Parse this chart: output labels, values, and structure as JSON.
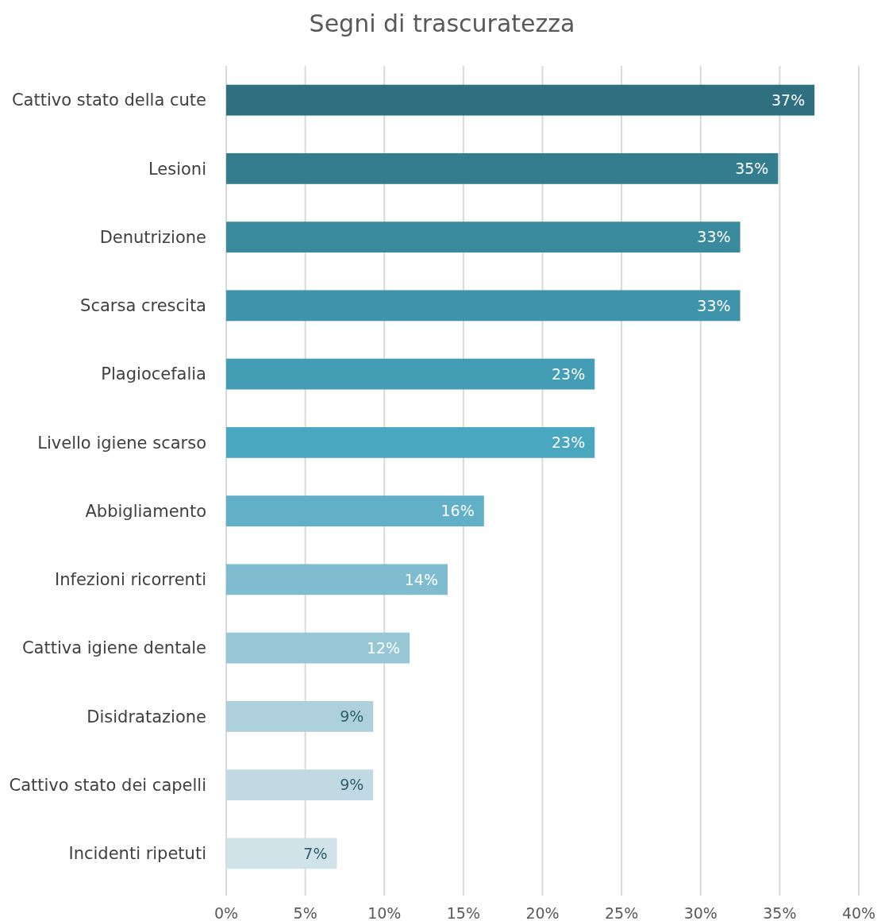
{
  "chart_data": {
    "type": "bar",
    "orientation": "horizontal",
    "title": "Segni di trascuratezza",
    "categories": [
      "Cattivo stato della cute",
      "Lesioni",
      "Denutrizione",
      "Scarsa crescita",
      "Plagiocefalia",
      "Livello igiene scarso",
      "Abbigliamento",
      "Infezioni ricorrenti",
      "Cattiva igiene dentale",
      "Disidratazione",
      "Cattivo stato dei capelli",
      "Incidenti ripetuti"
    ],
    "values": [
      37.2,
      34.9,
      32.5,
      32.5,
      23.3,
      23.3,
      16.3,
      14,
      11.6,
      9.3,
      9.3,
      7
    ],
    "value_labels": [
      "37%",
      "35%",
      "33%",
      "33%",
      "23%",
      "23%",
      "16%",
      "14%",
      "12%",
      "9%",
      "9%",
      "7%"
    ],
    "colors": [
      "#2e6f80",
      "#347d8f",
      "#3a8a9e",
      "#3f93aa",
      "#439db5",
      "#4aa7c0",
      "#62b0c8",
      "#80bccf",
      "#97c6d5",
      "#aed0dd",
      "#c0d9e2",
      "#d0e3e9"
    ],
    "xlim": [
      0,
      40
    ],
    "xticks": [
      {
        "value": 0,
        "label": "0%"
      },
      {
        "value": 5,
        "label": "5%"
      },
      {
        "value": 10,
        "label": "10%"
      },
      {
        "value": 15,
        "label": "15%"
      },
      {
        "value": 20,
        "label": "20%"
      },
      {
        "value": 25,
        "label": "25%"
      },
      {
        "value": 30,
        "label": "30%"
      },
      {
        "value": 35,
        "label": "35%"
      },
      {
        "value": 40,
        "label": "40%"
      }
    ],
    "grid": "x"
  }
}
